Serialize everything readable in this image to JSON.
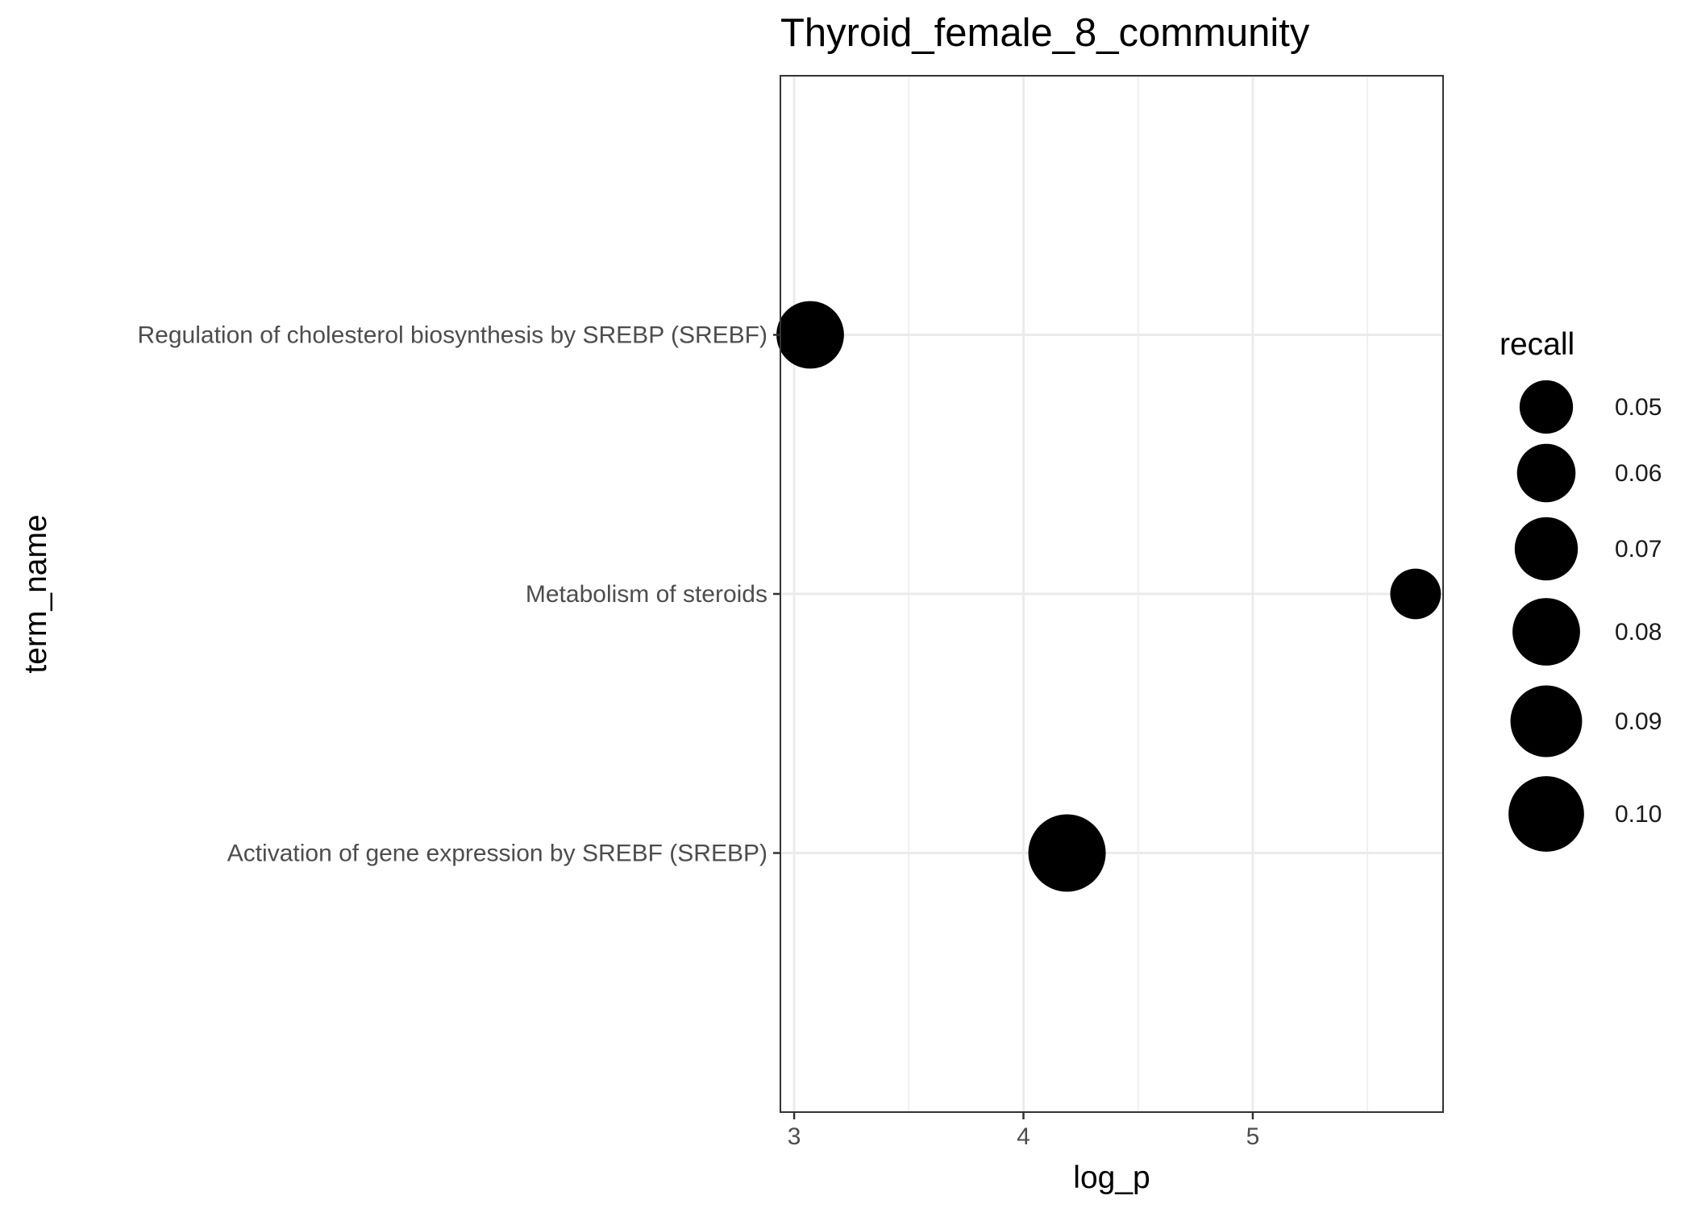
{
  "chart_data": {
    "type": "scatter",
    "title": "Thyroid_female_8_community",
    "xlabel": "log_p",
    "ylabel": "term_name",
    "x_ticks": [
      3,
      4,
      5
    ],
    "x_tick_labels": [
      "3",
      "4",
      "5"
    ],
    "xlim": [
      2.94,
      5.83
    ],
    "categories": [
      "Activation of gene expression by SREBF (SREBP)",
      "Metabolism of steroids",
      "Regulation of cholesterol biosynthesis by SREBP (SREBF)"
    ],
    "points": [
      {
        "term_name": "Regulation of cholesterol biosynthesis by SREBP (SREBF)",
        "log_p": 3.07,
        "recall": 0.08
      },
      {
        "term_name": "Metabolism of steroids",
        "log_p": 5.71,
        "recall": 0.045
      },
      {
        "term_name": "Activation of gene expression by SREBF (SREBP)",
        "log_p": 4.19,
        "recall": 0.105
      }
    ],
    "size_legend": {
      "title": "recall",
      "values": [
        0.05,
        0.06,
        0.07,
        0.08,
        0.09,
        0.1
      ],
      "labels": [
        "0.05",
        "0.06",
        "0.07",
        "0.08",
        "0.09",
        "0.10"
      ]
    },
    "grid": true,
    "legend_position": "right",
    "point_color": "#000000",
    "grid_color": "#ebebeb",
    "panel_border_color": "#333333"
  }
}
